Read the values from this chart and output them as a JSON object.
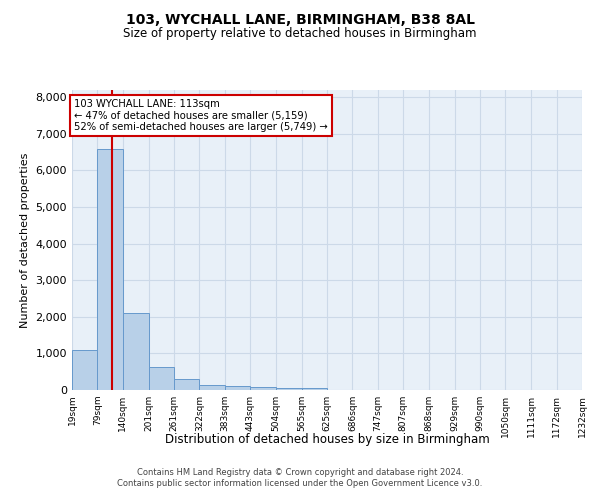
{
  "title": "103, WYCHALL LANE, BIRMINGHAM, B38 8AL",
  "subtitle": "Size of property relative to detached houses in Birmingham",
  "xlabel": "Distribution of detached houses by size in Birmingham",
  "ylabel": "Number of detached properties",
  "bin_edges": [
    19,
    79,
    140,
    201,
    261,
    322,
    383,
    443,
    504,
    565,
    625,
    686,
    747,
    807,
    868,
    929,
    990,
    1050,
    1111,
    1172,
    1232
  ],
  "bin_labels": [
    "19sqm",
    "79sqm",
    "140sqm",
    "201sqm",
    "261sqm",
    "322sqm",
    "383sqm",
    "443sqm",
    "504sqm",
    "565sqm",
    "625sqm",
    "686sqm",
    "747sqm",
    "807sqm",
    "868sqm",
    "929sqm",
    "990sqm",
    "1050sqm",
    "1111sqm",
    "1172sqm",
    "1232sqm"
  ],
  "bar_heights": [
    1100,
    6600,
    2100,
    620,
    300,
    150,
    100,
    70,
    50,
    50,
    10,
    0,
    0,
    0,
    0,
    0,
    0,
    0,
    0,
    0
  ],
  "bar_color": "#b8d0e8",
  "bar_edge_color": "#6699cc",
  "property_line_x": 113,
  "annotation_text": "103 WYCHALL LANE: 113sqm\n← 47% of detached houses are smaller (5,159)\n52% of semi-detached houses are larger (5,749) →",
  "annotation_box_color": "#ffffff",
  "annotation_box_edge": "#cc0000",
  "vline_color": "#cc0000",
  "ylim": [
    0,
    8200
  ],
  "yticks": [
    0,
    1000,
    2000,
    3000,
    4000,
    5000,
    6000,
    7000,
    8000
  ],
  "grid_color": "#ccd9e8",
  "background_color": "#e8f0f8",
  "footer_line1": "Contains HM Land Registry data © Crown copyright and database right 2024.",
  "footer_line2": "Contains public sector information licensed under the Open Government Licence v3.0."
}
